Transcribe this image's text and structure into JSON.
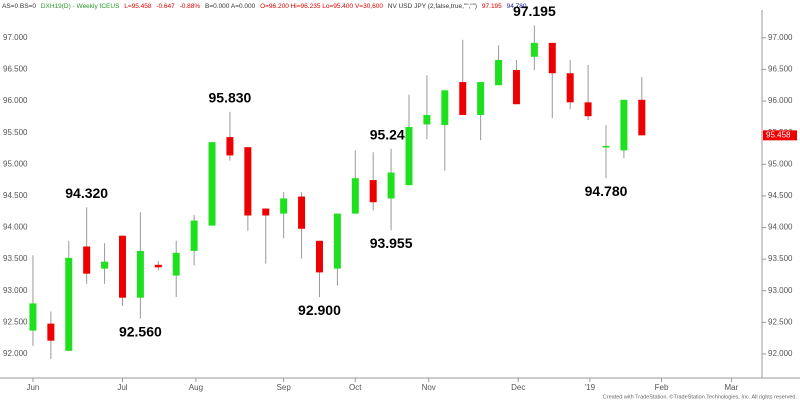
{
  "header_parts": [
    "AS=0 BS=0",
    "DXH19(D) - Weekly ICEUS",
    "L=95.458",
    "-0.647",
    "-0.88%",
    "B=0.000 A=0.000",
    "O=96.200 Hi=96.235 Lo=95.400 V=30,600",
    "NV USD JPY (2,false,true,\"\",\"\")",
    "97.195",
    "94.780"
  ],
  "footer": "Created with TradeStation. ©TradeStation Technologies, Inc. All rights reserved.",
  "chart_data": {
    "type": "candlestick",
    "up_color": "#1fe01f",
    "down_color": "#ee0000",
    "wick_color": "#999999",
    "x": [
      0,
      1,
      2,
      3,
      4,
      5,
      6,
      7,
      8,
      9,
      10,
      11,
      12,
      13,
      14,
      15,
      16,
      17,
      18,
      19,
      20,
      21,
      22,
      23,
      24,
      25,
      26,
      27,
      28,
      29,
      30,
      31,
      32,
      33,
      34
    ],
    "open": [
      92.37,
      92.48,
      92.05,
      93.7,
      93.35,
      93.87,
      92.89,
      93.41,
      93.24,
      93.63,
      94.03,
      95.43,
      95.27,
      94.3,
      94.22,
      94.49,
      93.79,
      93.35,
      94.22,
      94.75,
      94.46,
      94.67,
      95.63,
      95.62,
      96.3,
      95.78,
      96.25,
      96.49,
      96.7,
      96.92,
      96.44,
      95.98,
      95.29,
      95.22,
      96.02
    ],
    "high": [
      93.56,
      92.67,
      93.79,
      94.32,
      93.75,
      93.87,
      94.24,
      93.47,
      93.79,
      94.2,
      95.35,
      95.83,
      95.27,
      94.3,
      94.56,
      94.56,
      93.79,
      94.22,
      95.22,
      95.19,
      95.245,
      96.1,
      96.41,
      96.17,
      96.97,
      96.3,
      96.88,
      96.65,
      97.195,
      96.92,
      96.65,
      96.57,
      95.62,
      96.02,
      96.38
    ],
    "low": [
      92.13,
      91.92,
      92.05,
      93.11,
      93.11,
      92.76,
      92.56,
      93.32,
      92.9,
      93.4,
      94.03,
      95.06,
      93.95,
      93.43,
      93.83,
      93.51,
      92.9,
      93.08,
      94.22,
      94.27,
      93.955,
      94.67,
      95.4,
      94.9,
      95.78,
      95.38,
      96.25,
      95.95,
      96.49,
      95.73,
      95.87,
      95.7,
      94.78,
      95.1,
      95.458
    ],
    "close": [
      92.8,
      92.21,
      93.52,
      93.27,
      93.46,
      92.89,
      93.63,
      93.37,
      93.6,
      94.11,
      95.35,
      95.14,
      94.19,
      94.19,
      94.46,
      93.98,
      93.29,
      94.22,
      94.78,
      94.4,
      94.87,
      95.59,
      95.78,
      96.17,
      95.78,
      96.3,
      96.65,
      95.95,
      96.92,
      96.44,
      95.98,
      95.76,
      95.29,
      96.02,
      95.458
    ],
    "high_labels": [
      null,
      null,
      null,
      "94.320",
      null,
      null,
      null,
      null,
      null,
      null,
      null,
      "95.830",
      null,
      null,
      null,
      null,
      null,
      null,
      null,
      null,
      "95.245",
      null,
      null,
      null,
      null,
      null,
      null,
      null,
      "97.195",
      null,
      null,
      null,
      null,
      null,
      null
    ],
    "low_labels": [
      null,
      null,
      null,
      null,
      null,
      null,
      "92.560",
      null,
      null,
      null,
      null,
      null,
      null,
      null,
      null,
      null,
      "92.900",
      null,
      null,
      null,
      "93.955",
      null,
      null,
      null,
      null,
      null,
      null,
      null,
      null,
      null,
      null,
      null,
      "94.780",
      null,
      null
    ],
    "xlim": [
      -1.84,
      40.6
    ],
    "xticks": [
      {
        "value": 0,
        "label": "Jun"
      },
      {
        "value": 5,
        "label": "Jul"
      },
      {
        "value": 9.1,
        "label": "Aug"
      },
      {
        "value": 14,
        "label": "Sep"
      },
      {
        "value": 18,
        "label": "Oct"
      },
      {
        "value": 22.1,
        "label": "Nov"
      },
      {
        "value": 27.1,
        "label": "Dec"
      },
      {
        "value": 31.1,
        "label": "'19"
      },
      {
        "value": 35.1,
        "label": "Feb"
      },
      {
        "value": 39,
        "label": "Mar"
      }
    ],
    "ylim": [
      91.62,
      97.44
    ],
    "yticks": [
      {
        "value": 92,
        "label": "92.000"
      },
      {
        "value": 92.5,
        "label": "92.500"
      },
      {
        "value": 93,
        "label": "93.000"
      },
      {
        "value": 93.5,
        "label": "93.500"
      },
      {
        "value": 94,
        "label": "94.000"
      },
      {
        "value": 94.5,
        "label": "94.500"
      },
      {
        "value": 95,
        "label": "95.000"
      },
      {
        "value": 95.5,
        "label": "95.500"
      },
      {
        "value": 96,
        "label": "96.000"
      },
      {
        "value": 96.5,
        "label": "96.500"
      },
      {
        "value": 97,
        "label": "97.000"
      }
    ],
    "last_value": 95.458,
    "last_label": "95.458"
  }
}
